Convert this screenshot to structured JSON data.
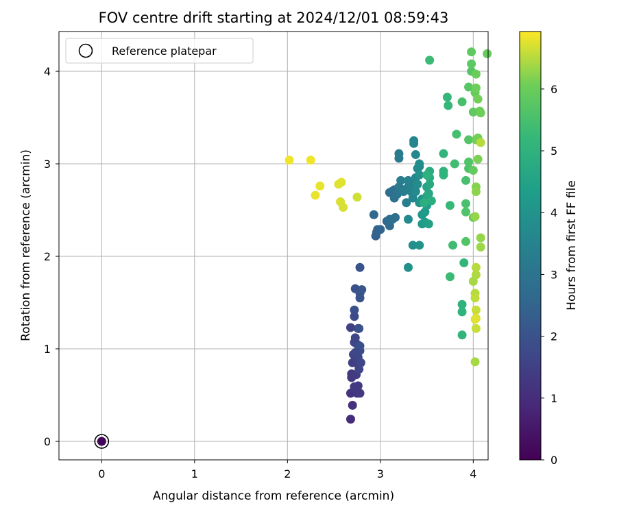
{
  "chart_data": {
    "type": "scatter",
    "title": "FOV centre drift starting at 2024/12/01 08:59:43",
    "xlabel": "Angular distance from reference (arcmin)",
    "ylabel": "Rotation from reference (arcmin)",
    "xlim": [
      -0.46,
      4.16
    ],
    "ylim": [
      -0.2,
      4.43
    ],
    "xticks": [
      0,
      1,
      2,
      3,
      4
    ],
    "yticks": [
      0,
      1,
      2,
      3,
      4
    ],
    "grid": true,
    "legend": {
      "position": "top-left",
      "entries": [
        "Reference platepar"
      ]
    },
    "reference_point": {
      "x": 0,
      "y": 0,
      "name": "Reference platepar",
      "hours": 0.1
    },
    "colorbar": {
      "label": "Hours from first FF file",
      "range": [
        0,
        6.93
      ],
      "ticks": [
        0,
        1,
        2,
        3,
        4,
        5,
        6
      ],
      "colormap": "viridis"
    },
    "series": [
      {
        "fields": [
          "x",
          "y",
          "hours"
        ],
        "points": [
          [
            2.68,
            0.24,
            1.0
          ],
          [
            2.7,
            0.39,
            1.1
          ],
          [
            2.68,
            0.52,
            1.15
          ],
          [
            2.75,
            0.52,
            1.2
          ],
          [
            2.72,
            0.55,
            1.2
          ],
          [
            2.69,
            0.69,
            1.25
          ],
          [
            2.72,
            0.59,
            1.3
          ],
          [
            2.69,
            0.73,
            1.35
          ],
          [
            2.74,
            0.72,
            1.4
          ],
          [
            2.7,
            0.85,
            1.45
          ],
          [
            2.73,
            0.85,
            1.5
          ],
          [
            2.77,
            0.78,
            1.6
          ],
          [
            2.71,
            0.94,
            1.55
          ],
          [
            2.76,
            0.91,
            1.65
          ],
          [
            2.79,
            0.85,
            1.7
          ],
          [
            2.72,
            1.07,
            1.6
          ],
          [
            2.75,
            1.05,
            1.7
          ],
          [
            2.73,
            1.12,
            1.65
          ],
          [
            2.78,
            0.98,
            1.85
          ],
          [
            2.76,
            1.22,
            1.75
          ],
          [
            2.78,
            1.03,
            1.9
          ],
          [
            2.68,
            1.23,
            1.55
          ],
          [
            2.72,
            1.35,
            1.8
          ],
          [
            2.72,
            1.42,
            1.9
          ],
          [
            2.77,
            1.22,
            2.0
          ],
          [
            2.73,
            1.65,
            1.95
          ],
          [
            2.78,
            1.55,
            2.0
          ],
          [
            2.78,
            1.6,
            2.05
          ],
          [
            2.8,
            1.64,
            2.1
          ],
          [
            2.78,
            1.88,
            2.05
          ],
          [
            2.78,
            0.52,
            1.3
          ],
          [
            2.76,
            0.6,
            1.35
          ],
          [
            2.73,
            0.96,
            1.7
          ],
          [
            2.95,
            2.22,
            2.4
          ],
          [
            2.97,
            2.29,
            2.5
          ],
          [
            3.0,
            2.29,
            2.5
          ],
          [
            2.93,
            2.45,
            2.6
          ],
          [
            2.96,
            2.26,
            2.45
          ],
          [
            3.07,
            2.38,
            2.6
          ],
          [
            3.1,
            2.33,
            2.7
          ],
          [
            3.1,
            2.4,
            2.75
          ],
          [
            3.13,
            2.4,
            2.8
          ],
          [
            3.16,
            2.42,
            2.85
          ],
          [
            3.1,
            2.69,
            2.75
          ],
          [
            3.12,
            2.7,
            2.8
          ],
          [
            3.15,
            2.63,
            2.9
          ],
          [
            3.18,
            2.67,
            3.0
          ],
          [
            3.15,
            2.72,
            2.85
          ],
          [
            3.2,
            2.7,
            3.05
          ],
          [
            3.22,
            2.73,
            3.1
          ],
          [
            3.2,
            3.06,
            3.2
          ],
          [
            3.2,
            3.11,
            3.25
          ],
          [
            3.2,
            2.75,
            3.15
          ],
          [
            3.22,
            2.82,
            3.3
          ],
          [
            3.25,
            2.7,
            3.3
          ],
          [
            3.28,
            2.58,
            3.35
          ],
          [
            3.3,
            2.75,
            3.4
          ],
          [
            3.3,
            2.82,
            3.45
          ],
          [
            3.35,
            2.77,
            3.5
          ],
          [
            3.33,
            2.7,
            3.45
          ],
          [
            3.36,
            3.25,
            3.55
          ],
          [
            3.36,
            3.22,
            3.6
          ],
          [
            3.38,
            3.1,
            3.65
          ],
          [
            3.35,
            2.63,
            3.55
          ],
          [
            3.38,
            2.85,
            3.6
          ],
          [
            3.4,
            2.95,
            3.7
          ],
          [
            3.42,
            2.97,
            3.75
          ],
          [
            3.42,
            3.0,
            3.8
          ],
          [
            3.38,
            2.7,
            3.7
          ],
          [
            3.4,
            2.78,
            3.8
          ],
          [
            3.42,
            2.88,
            3.9
          ],
          [
            3.3,
            2.4,
            3.7
          ],
          [
            3.35,
            2.12,
            3.85
          ],
          [
            3.42,
            2.12,
            4.0
          ],
          [
            3.3,
            1.88,
            3.9
          ],
          [
            3.42,
            2.58,
            3.95
          ],
          [
            3.45,
            2.62,
            4.05
          ],
          [
            3.45,
            2.45,
            4.1
          ],
          [
            3.45,
            2.35,
            4.2
          ],
          [
            3.48,
            2.48,
            4.25
          ],
          [
            3.48,
            2.37,
            4.3
          ],
          [
            3.5,
            2.55,
            4.35
          ],
          [
            3.52,
            2.35,
            4.45
          ],
          [
            3.5,
            2.65,
            4.5
          ],
          [
            3.5,
            2.75,
            4.55
          ],
          [
            3.52,
            2.62,
            4.6
          ],
          [
            3.52,
            2.68,
            4.65
          ],
          [
            3.53,
            2.78,
            4.7
          ],
          [
            3.53,
            2.85,
            4.75
          ],
          [
            3.53,
            2.92,
            4.8
          ],
          [
            3.55,
            2.6,
            4.85
          ],
          [
            3.47,
            2.58,
            4.9
          ],
          [
            3.5,
            2.88,
            4.95
          ],
          [
            3.68,
            2.92,
            5.0
          ],
          [
            3.68,
            2.88,
            5.05
          ],
          [
            3.68,
            3.11,
            5.1
          ],
          [
            3.72,
            3.72,
            5.15
          ],
          [
            3.73,
            3.63,
            5.2
          ],
          [
            3.75,
            2.55,
            5.25
          ],
          [
            3.75,
            1.78,
            5.3
          ],
          [
            3.78,
            2.12,
            5.35
          ],
          [
            3.8,
            3.0,
            5.4
          ],
          [
            3.82,
            3.32,
            5.45
          ],
          [
            3.88,
            3.67,
            5.5
          ],
          [
            3.88,
            1.48,
            5.0
          ],
          [
            3.88,
            1.4,
            5.05
          ],
          [
            3.88,
            1.15,
            5.1
          ],
          [
            3.9,
            1.93,
            5.15
          ],
          [
            3.92,
            2.82,
            5.5
          ],
          [
            3.92,
            2.57,
            5.55
          ],
          [
            3.92,
            2.48,
            5.6
          ],
          [
            3.92,
            2.16,
            5.65
          ],
          [
            3.95,
            2.95,
            5.6
          ],
          [
            3.95,
            3.02,
            5.65
          ],
          [
            3.95,
            3.26,
            5.7
          ],
          [
            3.95,
            3.83,
            5.75
          ],
          [
            3.98,
            4.0,
            5.7
          ],
          [
            3.98,
            4.08,
            5.8
          ],
          [
            3.98,
            4.21,
            5.85
          ],
          [
            4.0,
            3.56,
            5.85
          ],
          [
            4.0,
            2.93,
            5.9
          ],
          [
            4.0,
            2.42,
            5.9
          ],
          [
            4.02,
            3.77,
            5.95
          ],
          [
            4.03,
            3.97,
            6.0
          ],
          [
            4.03,
            3.82,
            6.05
          ],
          [
            4.03,
            3.26,
            6.05
          ],
          [
            4.05,
            3.7,
            6.1
          ],
          [
            4.05,
            3.28,
            6.1
          ],
          [
            4.05,
            3.05,
            6.15
          ],
          [
            4.03,
            2.75,
            6.2
          ],
          [
            4.03,
            2.7,
            6.25
          ],
          [
            4.02,
            2.43,
            6.3
          ],
          [
            4.07,
            3.57,
            6.0
          ],
          [
            4.08,
            3.55,
            6.05
          ],
          [
            4.15,
            4.19,
            5.95
          ],
          [
            3.53,
            4.12,
            5.3
          ],
          [
            4.08,
            2.2,
            6.3
          ],
          [
            4.08,
            2.1,
            6.35
          ],
          [
            4.0,
            1.73,
            6.4
          ],
          [
            4.03,
            1.8,
            6.45
          ],
          [
            4.03,
            1.88,
            6.5
          ],
          [
            4.02,
            1.6,
            6.5
          ],
          [
            4.02,
            1.55,
            6.55
          ],
          [
            4.03,
            1.42,
            6.6
          ],
          [
            4.03,
            1.33,
            6.7
          ],
          [
            4.02,
            1.32,
            6.75
          ],
          [
            4.03,
            1.22,
            6.6
          ],
          [
            4.02,
            0.86,
            6.4
          ],
          [
            4.08,
            3.23,
            6.5
          ],
          [
            2.02,
            3.04,
            6.85
          ],
          [
            2.25,
            3.04,
            6.85
          ],
          [
            2.35,
            2.76,
            6.8
          ],
          [
            2.3,
            2.66,
            6.8
          ],
          [
            2.55,
            2.78,
            6.75
          ],
          [
            2.58,
            2.8,
            6.75
          ],
          [
            2.57,
            2.59,
            6.7
          ],
          [
            2.6,
            2.53,
            6.7
          ],
          [
            2.75,
            2.64,
            6.65
          ]
        ]
      }
    ]
  }
}
